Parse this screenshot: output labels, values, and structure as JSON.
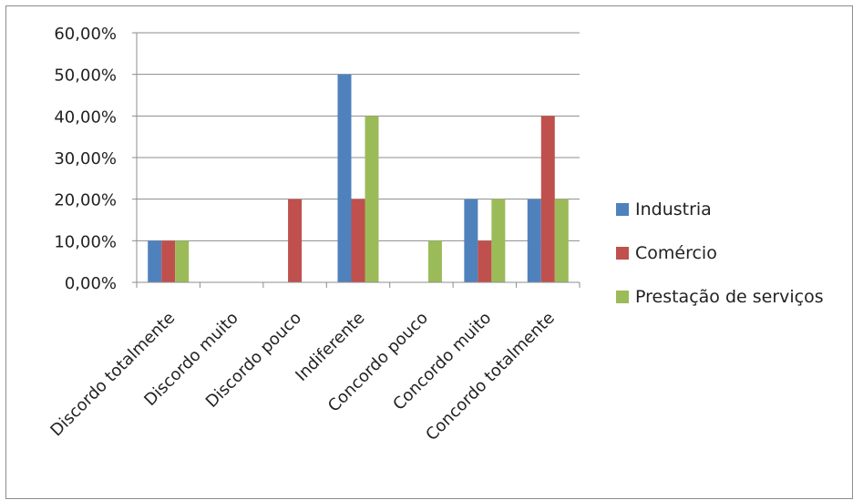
{
  "chart_data": {
    "type": "bar",
    "categories": [
      "Discordo totalmente",
      "Discordo muito",
      "Discordo pouco",
      "Indiferente",
      "Concordo pouco",
      "Concordo muito",
      "Concordo totalmente"
    ],
    "series": [
      {
        "name": "Industria",
        "color": "#4f81bd",
        "values": [
          10,
          0,
          0,
          50,
          0,
          20,
          20
        ]
      },
      {
        "name": "Comércio",
        "color": "#c0504d",
        "values": [
          10,
          0,
          20,
          20,
          0,
          10,
          40
        ]
      },
      {
        "name": "Prestação de serviços",
        "color": "#9bbb59",
        "values": [
          10,
          0,
          0,
          40,
          10,
          20,
          20
        ]
      }
    ],
    "yticks": [
      "0,00%",
      "10,00%",
      "20,00%",
      "30,00%",
      "40,00%",
      "50,00%",
      "60,00%"
    ],
    "ylim": [
      0,
      60
    ],
    "grid": true,
    "legend_position": "right"
  }
}
